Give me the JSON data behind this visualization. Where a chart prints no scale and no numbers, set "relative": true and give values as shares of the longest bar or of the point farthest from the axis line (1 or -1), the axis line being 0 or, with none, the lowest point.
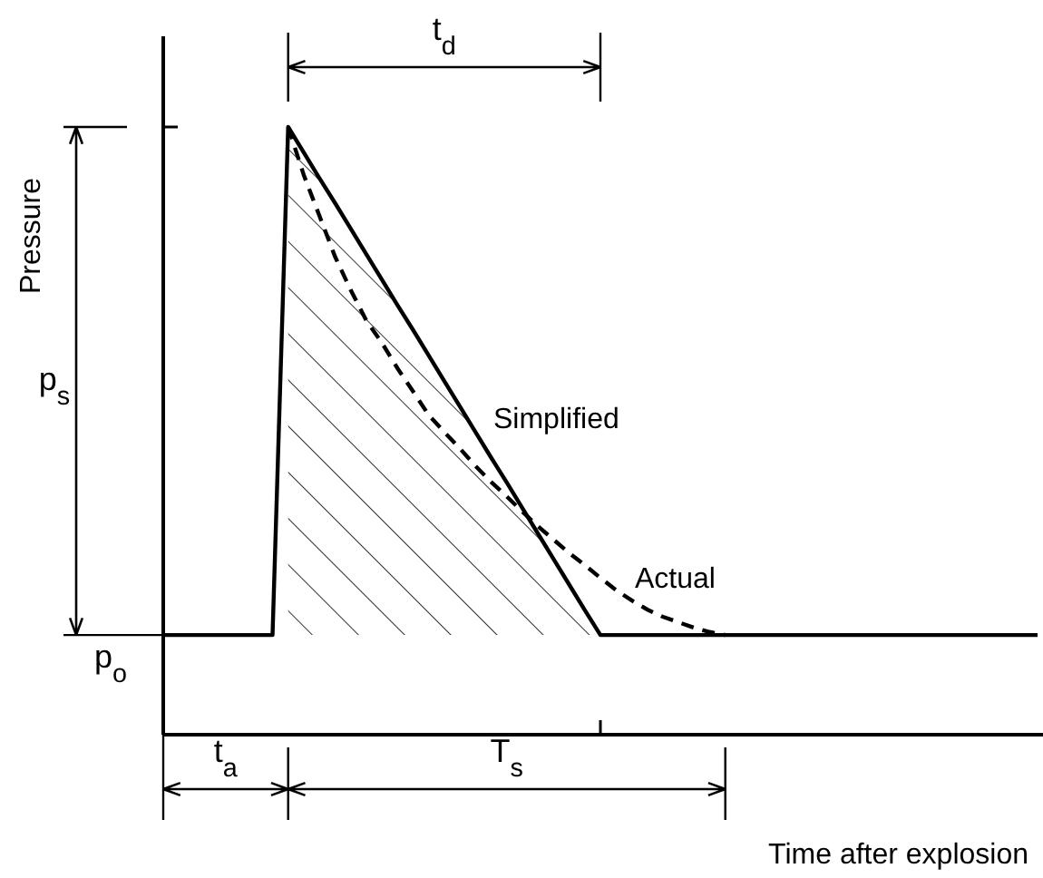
{
  "chart_data": {
    "type": "line",
    "relative": true,
    "ylabel": "Pressure",
    "xlabel": "Time after explosion",
    "categories": [
      null,
      null,
      null,
      null,
      null,
      null,
      null,
      null,
      null,
      null,
      null,
      null,
      null,
      null,
      null,
      null,
      null,
      null,
      null,
      null,
      null,
      null,
      null,
      null,
      null,
      null,
      null,
      null,
      null,
      null,
      null,
      null,
      null,
      null,
      null,
      null,
      null,
      null,
      null,
      null,
      null,
      null,
      null,
      null,
      null,
      null,
      null,
      null,
      null,
      null,
      null,
      null,
      null,
      null,
      null,
      null,
      null
    ],
    "series": [
      {
        "name": "Simplified",
        "color": "#000000",
        "line_style": "solid",
        "values": [
          0.164,
          0.164,
          0.164,
          0.164,
          0.164,
          0.164,
          0.164,
          0.164,
          1,
          0.958,
          0.916,
          0.875,
          0.833,
          0.791,
          0.749,
          0.707,
          0.666,
          0.624,
          0.582,
          0.54,
          0.498,
          0.456,
          0.415,
          0.373,
          0.331,
          0.289,
          0.247,
          0.205,
          0.164,
          0.164,
          0.164,
          0.164,
          0.164,
          0.164,
          0.164,
          0.164,
          0.164,
          0.164,
          0.164,
          0.164,
          0.164,
          0.164,
          0.164,
          0.164,
          0.164,
          0.164,
          0.164,
          0.164,
          0.164,
          0.164,
          0.164,
          0.164,
          0.164,
          0.164,
          0.164,
          0.164,
          0.164
        ]
      },
      {
        "name": "Actual",
        "color": "#000000",
        "line_style": "dashed",
        "values": [
          null,
          null,
          null,
          null,
          null,
          null,
          null,
          null,
          1,
          0.921,
          0.854,
          0.787,
          0.732,
          0.682,
          0.645,
          0.603,
          0.565,
          0.526,
          0.498,
          0.471,
          0.442,
          0.416,
          0.392,
          0.367,
          0.343,
          0.321,
          0.299,
          0.279,
          0.258,
          0.238,
          0.221,
          0.206,
          0.194,
          0.185,
          0.176,
          0.169,
          0.164,
          null,
          null,
          null,
          null,
          null,
          null,
          null,
          null,
          null,
          null,
          null,
          null,
          null,
          null,
          null,
          null,
          null,
          null,
          null,
          null
        ]
      }
    ],
    "annotations": [
      "t$_{d}$",
      "p$_{s}$",
      "p$_{o}$",
      "t$_{a}$",
      "T$_{s}$"
    ]
  }
}
